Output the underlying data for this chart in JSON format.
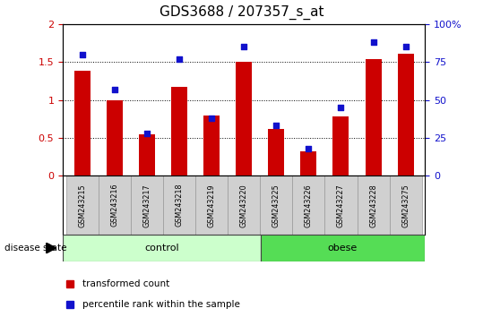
{
  "title": "GDS3688 / 207357_s_at",
  "categories": [
    "GSM243215",
    "GSM243216",
    "GSM243217",
    "GSM243218",
    "GSM243219",
    "GSM243220",
    "GSM243225",
    "GSM243226",
    "GSM243227",
    "GSM243228",
    "GSM243275"
  ],
  "red_values": [
    1.38,
    1.0,
    0.55,
    1.17,
    0.79,
    1.5,
    0.62,
    0.32,
    0.78,
    1.53,
    1.61
  ],
  "blue_pct": [
    80,
    57,
    28,
    77,
    38,
    85,
    33,
    18,
    45,
    88,
    85
  ],
  "red_color": "#cc0000",
  "blue_color": "#1111cc",
  "ylim_left": [
    0,
    2
  ],
  "ylim_right": [
    0,
    100
  ],
  "yticks_left": [
    0,
    0.5,
    1.0,
    1.5,
    2.0
  ],
  "ytick_labels_left": [
    "0",
    "0.5",
    "1",
    "1.5",
    "2"
  ],
  "yticks_right": [
    0,
    25,
    50,
    75,
    100
  ],
  "ytick_labels_right": [
    "0",
    "25",
    "50",
    "75",
    "100%"
  ],
  "ctrl_n": 6,
  "obese_n": 5,
  "ctrl_color": "#ccffcc",
  "obese_color": "#55dd55",
  "plot_bg": "#ffffff",
  "xticklabel_bg": "#d0d0d0",
  "bar_width": 0.5,
  "legend_red": "transformed count",
  "legend_blue": "percentile rank within the sample",
  "group_label": "disease state",
  "ctrl_label": "control",
  "obese_label": "obese"
}
